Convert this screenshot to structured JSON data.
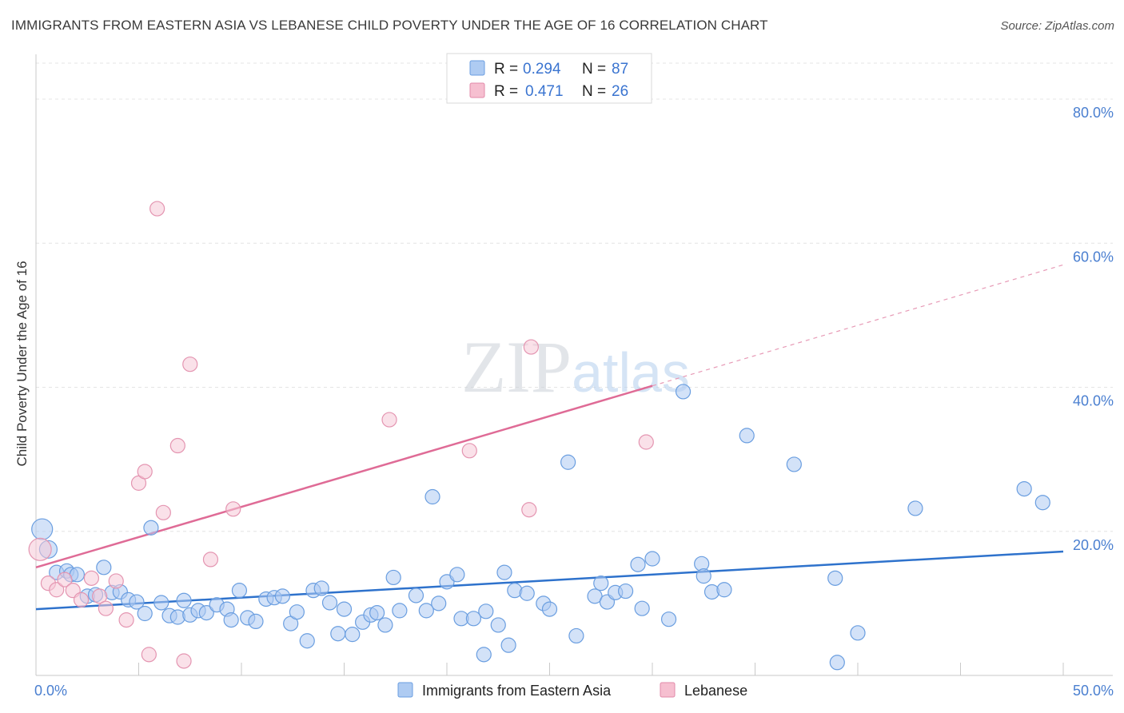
{
  "title": "IMMIGRANTS FROM EASTERN ASIA VS LEBANESE CHILD POVERTY UNDER THE AGE OF 16 CORRELATION CHART",
  "source": "Source: ZipAtlas.com",
  "watermark": "ZIPatlas",
  "colors": {
    "blue": "#4a86d8",
    "blue_fill": "#aecbf2",
    "pink": "#e0709a",
    "pink_fill": "#f6bfd0"
  },
  "legend": {
    "r_label": "R =",
    "n_label": "N =",
    "series": [
      {
        "r": "0.294",
        "n": "87"
      },
      {
        "r": "0.471",
        "n": "26"
      }
    ]
  },
  "chart_data": {
    "type": "scatter",
    "title": "IMMIGRANTS FROM EASTERN ASIA VS LEBANESE CHILD POVERTY UNDER THE AGE OF 16 CORRELATION CHART",
    "xlabel": "",
    "ylabel": "Child Poverty Under the Age of 16",
    "xlim": [
      0,
      50
    ],
    "ylim": [
      0,
      85
    ],
    "x_tick_labels": [
      "0.0%",
      "50.0%"
    ],
    "y_ticks": [
      20,
      40,
      60,
      80
    ],
    "y_tick_labels": [
      "20.0%",
      "40.0%",
      "60.0%",
      "80.0%"
    ],
    "grid": true,
    "legend_position": "top-center",
    "series": [
      {
        "name": "Immigrants from Eastern Asia",
        "color": "#4a86d8",
        "trend": {
          "x": [
            0,
            50
          ],
          "y": [
            9.2,
            17.2
          ]
        },
        "points": [
          [
            0.3,
            20.3
          ],
          [
            0.6,
            17.5
          ],
          [
            1.0,
            14.3
          ],
          [
            1.5,
            14.5
          ],
          [
            1.7,
            14.0
          ],
          [
            2.0,
            14.0
          ],
          [
            2.5,
            11.0
          ],
          [
            2.9,
            11.2
          ],
          [
            3.3,
            15.0
          ],
          [
            3.7,
            11.5
          ],
          [
            4.1,
            11.6
          ],
          [
            4.5,
            10.5
          ],
          [
            4.9,
            10.2
          ],
          [
            5.3,
            8.6
          ],
          [
            5.6,
            20.5
          ],
          [
            6.1,
            10.1
          ],
          [
            6.5,
            8.3
          ],
          [
            6.9,
            8.1
          ],
          [
            7.2,
            10.4
          ],
          [
            7.5,
            8.4
          ],
          [
            7.9,
            9.0
          ],
          [
            8.3,
            8.7
          ],
          [
            8.8,
            9.8
          ],
          [
            9.3,
            9.2
          ],
          [
            9.5,
            7.7
          ],
          [
            9.9,
            11.8
          ],
          [
            10.3,
            8.0
          ],
          [
            10.7,
            7.5
          ],
          [
            11.2,
            10.6
          ],
          [
            11.6,
            10.8
          ],
          [
            12.0,
            11.0
          ],
          [
            12.4,
            7.2
          ],
          [
            12.7,
            8.8
          ],
          [
            13.2,
            4.8
          ],
          [
            13.5,
            11.8
          ],
          [
            13.9,
            12.1
          ],
          [
            14.3,
            10.1
          ],
          [
            14.7,
            5.8
          ],
          [
            15.0,
            9.2
          ],
          [
            15.4,
            5.7
          ],
          [
            15.9,
            7.4
          ],
          [
            16.3,
            8.4
          ],
          [
            16.6,
            8.7
          ],
          [
            17.0,
            7.0
          ],
          [
            17.4,
            13.6
          ],
          [
            17.7,
            9.0
          ],
          [
            18.5,
            11.1
          ],
          [
            19.0,
            9.0
          ],
          [
            19.3,
            24.8
          ],
          [
            19.6,
            10.0
          ],
          [
            20.0,
            13.0
          ],
          [
            20.5,
            14.0
          ],
          [
            20.7,
            7.9
          ],
          [
            21.3,
            7.9
          ],
          [
            21.8,
            2.9
          ],
          [
            21.9,
            8.9
          ],
          [
            22.5,
            7.0
          ],
          [
            22.8,
            14.3
          ],
          [
            23.0,
            4.2
          ],
          [
            23.3,
            11.8
          ],
          [
            23.9,
            11.4
          ],
          [
            24.7,
            10.0
          ],
          [
            25.0,
            9.2
          ],
          [
            25.9,
            29.6
          ],
          [
            26.3,
            5.5
          ],
          [
            27.2,
            11.0
          ],
          [
            27.5,
            12.8
          ],
          [
            27.8,
            10.2
          ],
          [
            28.2,
            11.5
          ],
          [
            28.7,
            11.7
          ],
          [
            29.3,
            15.4
          ],
          [
            29.5,
            9.3
          ],
          [
            30.0,
            16.2
          ],
          [
            30.8,
            7.8
          ],
          [
            31.5,
            39.4
          ],
          [
            32.4,
            15.5
          ],
          [
            32.5,
            13.8
          ],
          [
            32.9,
            11.6
          ],
          [
            33.5,
            11.9
          ],
          [
            34.6,
            33.3
          ],
          [
            36.9,
            29.3
          ],
          [
            38.9,
            13.5
          ],
          [
            39.0,
            1.8
          ],
          [
            40.0,
            5.9
          ],
          [
            42.8,
            23.2
          ],
          [
            48.1,
            25.9
          ],
          [
            49.0,
            24.0
          ]
        ]
      },
      {
        "name": "Lebanese",
        "color": "#e0709a",
        "trend": {
          "x": [
            0,
            30
          ],
          "y": [
            15.0,
            40.2
          ]
        },
        "trend_extension": {
          "x": [
            30,
            50
          ],
          "y": [
            40.2,
            57.0
          ]
        },
        "points": [
          [
            0.2,
            17.5
          ],
          [
            0.6,
            12.8
          ],
          [
            1.0,
            11.9
          ],
          [
            1.4,
            13.3
          ],
          [
            1.8,
            11.8
          ],
          [
            2.2,
            10.5
          ],
          [
            2.7,
            13.5
          ],
          [
            3.1,
            11.0
          ],
          [
            3.4,
            9.3
          ],
          [
            3.9,
            13.1
          ],
          [
            4.4,
            7.7
          ],
          [
            5.0,
            26.7
          ],
          [
            5.3,
            28.3
          ],
          [
            5.5,
            2.9
          ],
          [
            5.9,
            64.8
          ],
          [
            6.2,
            22.6
          ],
          [
            6.9,
            31.9
          ],
          [
            7.2,
            2.0
          ],
          [
            7.5,
            43.2
          ],
          [
            8.5,
            16.1
          ],
          [
            9.6,
            23.1
          ],
          [
            17.2,
            35.5
          ],
          [
            21.1,
            31.2
          ],
          [
            24.1,
            45.6
          ],
          [
            24.0,
            23.0
          ],
          [
            29.7,
            32.4
          ]
        ]
      }
    ]
  },
  "bottom_legend": [
    "Immigrants from Eastern Asia",
    "Lebanese"
  ]
}
